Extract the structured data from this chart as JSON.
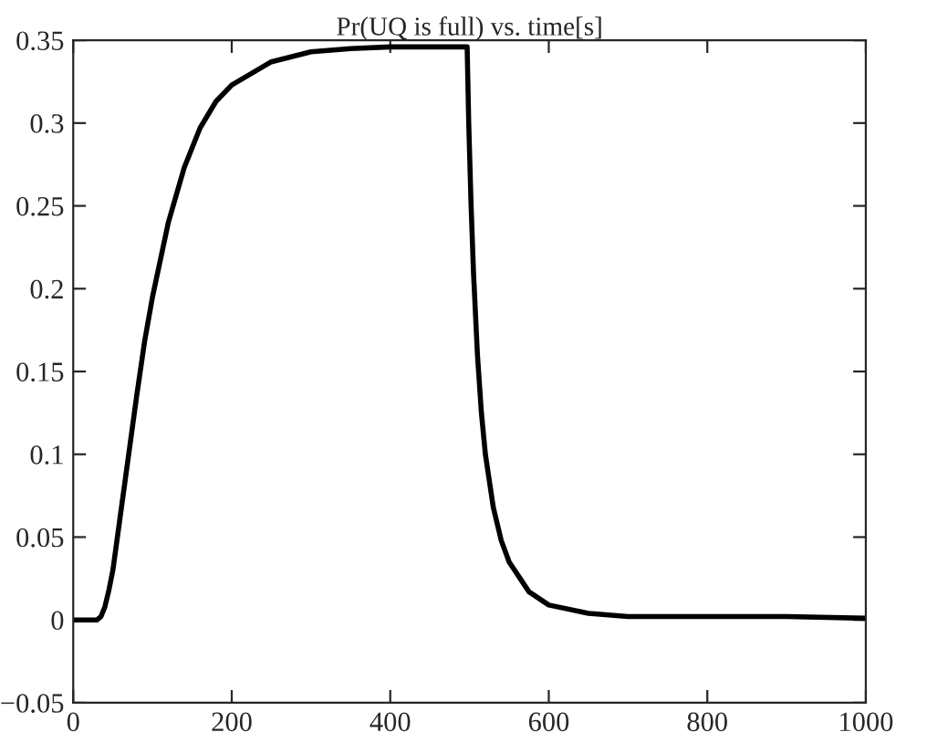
{
  "chart_data": {
    "type": "line",
    "title": "Pr(UQ is full) vs. time[s]",
    "series": [
      {
        "color": "#000000",
        "x": [
          0,
          30,
          35,
          40,
          45,
          50,
          60,
          70,
          80,
          90,
          100,
          120,
          140,
          160,
          180,
          200,
          250,
          300,
          350,
          400,
          450,
          497,
          499,
          502,
          505,
          510,
          515,
          520,
          530,
          540,
          550,
          575,
          600,
          650,
          700,
          800,
          900,
          1000
        ],
        "values": [
          0,
          0,
          0.002,
          0.008,
          0.018,
          0.03,
          0.065,
          0.1,
          0.135,
          0.168,
          0.195,
          0.24,
          0.273,
          0.297,
          0.313,
          0.323,
          0.337,
          0.343,
          0.345,
          0.346,
          0.346,
          0.346,
          0.3,
          0.25,
          0.21,
          0.16,
          0.125,
          0.1,
          0.068,
          0.048,
          0.035,
          0.017,
          0.009,
          0.004,
          0.002,
          0.002,
          0.002,
          0.001
        ]
      }
    ],
    "xlim": [
      0,
      1000
    ],
    "xticks": [
      0,
      200,
      400,
      600,
      800,
      1000
    ],
    "ylim": [
      -0.05,
      0.35
    ],
    "yticks": [
      {
        "value": -0.05,
        "label": "−0.05"
      },
      0,
      0.05,
      0.1,
      0.15,
      0.2,
      0.25,
      0.3,
      0.35
    ],
    "grid": false,
    "legend": false,
    "marker": "none",
    "line_style": "solid"
  }
}
